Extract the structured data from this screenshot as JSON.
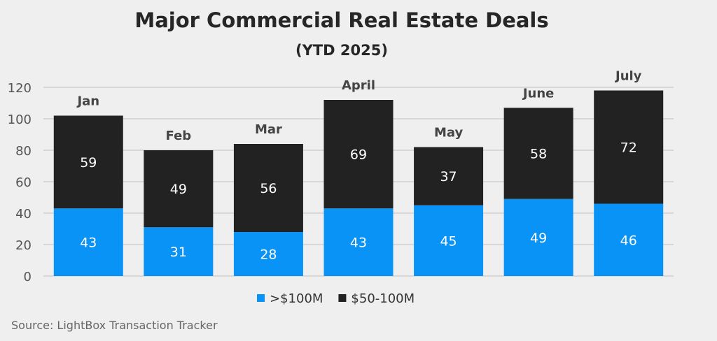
{
  "chart_data": {
    "type": "bar",
    "stacked": true,
    "title": "Major Commercial Real Estate Deals",
    "subtitle": "(YTD 2025)",
    "categories": [
      "Jan",
      "Feb",
      "Mar",
      "April",
      "May",
      "June",
      "July"
    ],
    "series": [
      {
        "name": ">$100M",
        "color": "#0a93f7",
        "values": [
          43,
          31,
          28,
          43,
          45,
          49,
          46
        ]
      },
      {
        "name": "$50-100M",
        "color": "#222222",
        "values": [
          59,
          49,
          56,
          69,
          37,
          58,
          72
        ]
      }
    ],
    "yticks": [
      0,
      20,
      40,
      60,
      80,
      100,
      120
    ],
    "ylim": [
      0,
      120
    ],
    "grid": true,
    "legend": "bottom",
    "source": "Source: LightBox Transaction Tracker"
  }
}
